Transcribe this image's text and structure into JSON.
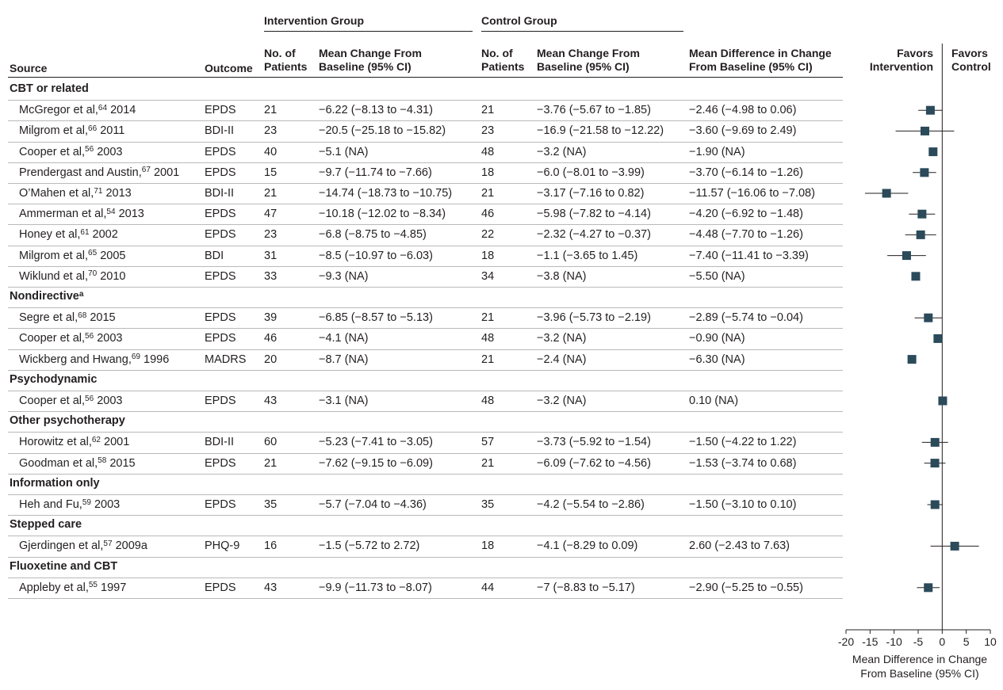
{
  "header": {
    "intervention_group": "Intervention Group",
    "control_group": "Control Group",
    "source": "Source",
    "outcome": "Outcome",
    "int_n_l1": "No. of",
    "int_n_l2": "Patients",
    "int_mc_l1": "Mean Change From",
    "int_mc_l2": "Baseline (95% CI)",
    "ctl_n_l1": "No. of",
    "ctl_n_l2": "Patients",
    "ctl_mc_l1": "Mean Change From",
    "ctl_mc_l2": "Baseline (95% CI)",
    "md_l1": "Mean Difference in Change",
    "md_l2": "From Baseline (95% CI)",
    "favors_int_l1": "Favors",
    "favors_int_l2": "Intervention",
    "favors_ctl_l1": "Favors",
    "favors_ctl_l2": "Control"
  },
  "groups": [
    {
      "name": "CBT or related",
      "name_sup": "",
      "studies": [
        {
          "author": "McGregor et al,",
          "ref": "64",
          "year": "2014",
          "outcome": "EPDS",
          "n_int": "21",
          "mc_int": "−6.22 (−8.13 to −4.31)",
          "n_ctl": "21",
          "mc_ctl": "−3.76 (−5.67 to −1.85)",
          "md": "−2.46 (−4.98 to 0.06)"
        },
        {
          "author": "Milgrom et al,",
          "ref": "66",
          "year": "2011",
          "outcome": "BDI-II",
          "n_int": "23",
          "mc_int": "−20.5 (−25.18 to −15.82)",
          "n_ctl": "23",
          "mc_ctl": "−16.9 (−21.58 to −12.22)",
          "md": "−3.60 (−9.69 to 2.49)"
        },
        {
          "author": "Cooper et al,",
          "ref": "56",
          "year": "2003",
          "outcome": "EPDS",
          "n_int": "40",
          "mc_int": "−5.1 (NA)",
          "n_ctl": "48",
          "mc_ctl": "−3.2 (NA)",
          "md": "−1.90 (NA)"
        },
        {
          "author": "Prendergast and Austin,",
          "ref": "67",
          "year": "2001",
          "outcome": "EPDS",
          "n_int": "15",
          "mc_int": "−9.7 (−11.74 to −7.66)",
          "n_ctl": "18",
          "mc_ctl": "−6.0 (−8.01 to −3.99)",
          "md": "−3.70 (−6.14 to −1.26)"
        },
        {
          "author": "O’Mahen et al,",
          "ref": "71",
          "year": "2013",
          "outcome": "BDI-II",
          "n_int": "21",
          "mc_int": "−14.74 (−18.73 to −10.75)",
          "n_ctl": "21",
          "mc_ctl": "−3.17 (−7.16 to 0.82)",
          "md": "−11.57 (−16.06 to −7.08)"
        },
        {
          "author": "Ammerman et al,",
          "ref": "54",
          "year": "2013",
          "outcome": "EPDS",
          "n_int": "47",
          "mc_int": "−10.18 (−12.02 to −8.34)",
          "n_ctl": "46",
          "mc_ctl": "−5.98 (−7.82 to −4.14)",
          "md": "−4.20 (−6.92 to −1.48)"
        },
        {
          "author": "Honey et al,",
          "ref": "61",
          "year": "2002",
          "outcome": "EPDS",
          "n_int": "23",
          "mc_int": "−6.8 (−8.75 to −4.85)",
          "n_ctl": "22",
          "mc_ctl": "−2.32 (−4.27 to −0.37)",
          "md": "−4.48 (−7.70 to −1.26)"
        },
        {
          "author": "Milgrom et al,",
          "ref": "65",
          "year": "2005",
          "outcome": "BDI",
          "n_int": "31",
          "mc_int": "−8.5 (−10.97 to −6.03)",
          "n_ctl": "18",
          "mc_ctl": "−1.1 (−3.65 to 1.45)",
          "md": "−7.40 (−11.41 to −3.39)"
        },
        {
          "author": "Wiklund et al,",
          "ref": "70",
          "year": "2010",
          "outcome": "EPDS",
          "n_int": "33",
          "mc_int": "−9.3 (NA)",
          "n_ctl": "34",
          "mc_ctl": "−3.8 (NA)",
          "md": "−5.50 (NA)"
        }
      ]
    },
    {
      "name": "Nondirective",
      "name_sup": "a",
      "studies": [
        {
          "author": "Segre et al,",
          "ref": "68",
          "year": "2015",
          "outcome": "EPDS",
          "n_int": "39",
          "mc_int": "−6.85 (−8.57 to −5.13)",
          "n_ctl": "21",
          "mc_ctl": "−3.96 (−5.73 to −2.19)",
          "md": "−2.89 (−5.74 to −0.04)"
        },
        {
          "author": "Cooper et al,",
          "ref": "56",
          "year": "2003",
          "outcome": "EPDS",
          "n_int": "46",
          "mc_int": "−4.1 (NA)",
          "n_ctl": "48",
          "mc_ctl": "−3.2 (NA)",
          "md": "−0.90 (NA)"
        },
        {
          "author": "Wickberg and Hwang,",
          "ref": "69",
          "year": "1996",
          "outcome": "MADRS",
          "n_int": "20",
          "mc_int": "−8.7 (NA)",
          "n_ctl": "21",
          "mc_ctl": "−2.4 (NA)",
          "md": "−6.30 (NA)"
        }
      ]
    },
    {
      "name": "Psychodynamic",
      "name_sup": "",
      "studies": [
        {
          "author": "Cooper et al,",
          "ref": "56",
          "year": "2003",
          "outcome": "EPDS",
          "n_int": "43",
          "mc_int": "−3.1 (NA)",
          "n_ctl": "48",
          "mc_ctl": "−3.2 (NA)",
          "md": "0.10 (NA)"
        }
      ]
    },
    {
      "name": "Other psychotherapy",
      "name_sup": "",
      "studies": [
        {
          "author": "Horowitz et al,",
          "ref": "62",
          "year": "2001",
          "outcome": "BDI-II",
          "n_int": "60",
          "mc_int": "−5.23 (−7.41 to −3.05)",
          "n_ctl": "57",
          "mc_ctl": "−3.73 (−5.92 to −1.54)",
          "md": "−1.50 (−4.22 to 1.22)"
        },
        {
          "author": "Goodman et al,",
          "ref": "58",
          "year": "2015",
          "outcome": "EPDS",
          "n_int": "21",
          "mc_int": "−7.62 (−9.15 to −6.09)",
          "n_ctl": "21",
          "mc_ctl": "−6.09 (−7.62 to −4.56)",
          "md": "−1.53 (−3.74 to 0.68)"
        }
      ]
    },
    {
      "name": "Information only",
      "name_sup": "",
      "studies": [
        {
          "author": "Heh and Fu,",
          "ref": "59",
          "year": "2003",
          "outcome": "EPDS",
          "n_int": "35",
          "mc_int": "−5.7 (−7.04 to −4.36)",
          "n_ctl": "35",
          "mc_ctl": "−4.2 (−5.54 to −2.86)",
          "md": "−1.50 (−3.10 to 0.10)"
        }
      ]
    },
    {
      "name": "Stepped care",
      "name_sup": "",
      "studies": [
        {
          "author": "Gjerdingen et al,",
          "ref": "57",
          "year": "2009a",
          "outcome": "PHQ-9",
          "n_int": "16",
          "mc_int": "−1.5 (−5.72 to 2.72)",
          "n_ctl": "18",
          "mc_ctl": "−4.1 (−8.29 to 0.09)",
          "md": "2.60 (−2.43 to 7.63)"
        }
      ]
    },
    {
      "name": "Fluoxetine and CBT",
      "name_sup": "",
      "studies": [
        {
          "author": "Appleby et al,",
          "ref": "55",
          "year": "1997",
          "outcome": "EPDS",
          "n_int": "43",
          "mc_int": "−9.9 (−11.73 to −8.07)",
          "n_ctl": "44",
          "mc_ctl": "−7 (−8.83 to −5.17)",
          "md": "−2.90 (−5.25 to −0.55)"
        }
      ]
    }
  ],
  "chart_data": {
    "type": "scatter",
    "subtype": "forest-plot",
    "xlabel": "Mean Difference in Change From Baseline (95% CI)",
    "xlabel_l1": "Mean Difference in Change",
    "xlabel_l2": "From Baseline (95% CI)",
    "xlim": [
      -20,
      10
    ],
    "xticks": [
      -20,
      -15,
      -10,
      -5,
      0,
      5,
      10
    ],
    "xtick_labels": [
      "-20",
      "-15",
      "-10",
      "-5",
      "0",
      "5",
      "10"
    ],
    "reference_line": 0,
    "marker_color": "#2b4a5a",
    "points": [
      {
        "est": -2.46,
        "lo": -4.98,
        "hi": 0.06
      },
      {
        "est": -3.6,
        "lo": -9.69,
        "hi": 2.49
      },
      {
        "est": -1.9,
        "lo": null,
        "hi": null
      },
      {
        "est": -3.7,
        "lo": -6.14,
        "hi": -1.26
      },
      {
        "est": -11.57,
        "lo": -16.06,
        "hi": -7.08
      },
      {
        "est": -4.2,
        "lo": -6.92,
        "hi": -1.48
      },
      {
        "est": -4.48,
        "lo": -7.7,
        "hi": -1.26
      },
      {
        "est": -7.4,
        "lo": -11.41,
        "hi": -3.39
      },
      {
        "est": -5.5,
        "lo": null,
        "hi": null
      },
      {
        "est": -2.89,
        "lo": -5.74,
        "hi": -0.04
      },
      {
        "est": -0.9,
        "lo": null,
        "hi": null
      },
      {
        "est": -6.3,
        "lo": null,
        "hi": null
      },
      {
        "est": 0.1,
        "lo": null,
        "hi": null
      },
      {
        "est": -1.5,
        "lo": -4.22,
        "hi": 1.22
      },
      {
        "est": -1.53,
        "lo": -3.74,
        "hi": 0.68
      },
      {
        "est": -1.5,
        "lo": -3.1,
        "hi": 0.1
      },
      {
        "est": 2.6,
        "lo": -2.43,
        "hi": 7.63
      },
      {
        "est": -2.9,
        "lo": -5.25,
        "hi": -0.55
      }
    ]
  }
}
